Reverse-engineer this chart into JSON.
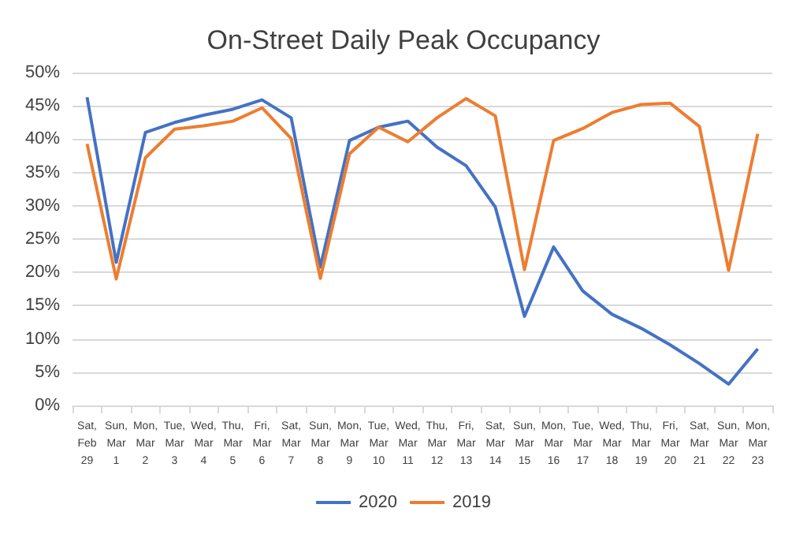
{
  "chart_data": {
    "type": "line",
    "title": "On-Street Daily Peak Occupancy",
    "categories": [
      "Sat,\nFeb\n29",
      "Sun,\nMar\n1",
      "Mon,\nMar\n2",
      "Tue,\nMar\n3",
      "Wed,\nMar\n4",
      "Thu,\nMar\n5",
      "Fri,\nMar\n6",
      "Sat,\nMar\n7",
      "Sun,\nMar\n8",
      "Mon,\nMar\n9",
      "Tue,\nMar\n10",
      "Wed,\nMar\n11",
      "Thu,\nMar\n12",
      "Fri,\nMar\n13",
      "Sat,\nMar\n14",
      "Sun,\nMar\n15",
      "Mon,\nMar\n16",
      "Tue,\nMar\n17",
      "Wed,\nMar\n18",
      "Thu,\nMar\n19",
      "Fri,\nMar\n20",
      "Sat,\nMar\n21",
      "Sun,\nMar\n22",
      "Mon,\nMar\n23"
    ],
    "series": [
      {
        "name": "2020",
        "color": "#4472c4",
        "values": [
          46.3,
          21.5,
          41,
          42.5,
          43.6,
          44.5,
          45.9,
          43.2,
          20.8,
          39.8,
          41.8,
          42.7,
          38.8,
          36,
          29.8,
          13.4,
          23.8,
          17.2,
          13.7,
          11.6,
          9.1,
          6.3,
          3.2,
          8.5
        ]
      },
      {
        "name": "2019",
        "color": "#ed7d31",
        "values": [
          39.3,
          19,
          37.2,
          41.5,
          42,
          42.7,
          44.7,
          40.1,
          19.1,
          37.8,
          41.8,
          39.6,
          43.2,
          46.1,
          43.5,
          20.4,
          39.8,
          41.6,
          44,
          45.2,
          45.4,
          41.9,
          20.3,
          40.8
        ]
      }
    ],
    "ylim": [
      0,
      50
    ],
    "yticks": [
      {
        "value": 0,
        "label": "0%"
      },
      {
        "value": 5,
        "label": "5%"
      },
      {
        "value": 10,
        "label": "10%"
      },
      {
        "value": 15,
        "label": "15%"
      },
      {
        "value": 20,
        "label": "20%"
      },
      {
        "value": 25,
        "label": "25%"
      },
      {
        "value": 30,
        "label": "30%"
      },
      {
        "value": 35,
        "label": "35%"
      },
      {
        "value": 40,
        "label": "40%"
      },
      {
        "value": 45,
        "label": "45%"
      },
      {
        "value": 50,
        "label": "50%"
      }
    ],
    "grid": "y",
    "legend": "bottom",
    "marker": "none",
    "line_style": "solid"
  }
}
